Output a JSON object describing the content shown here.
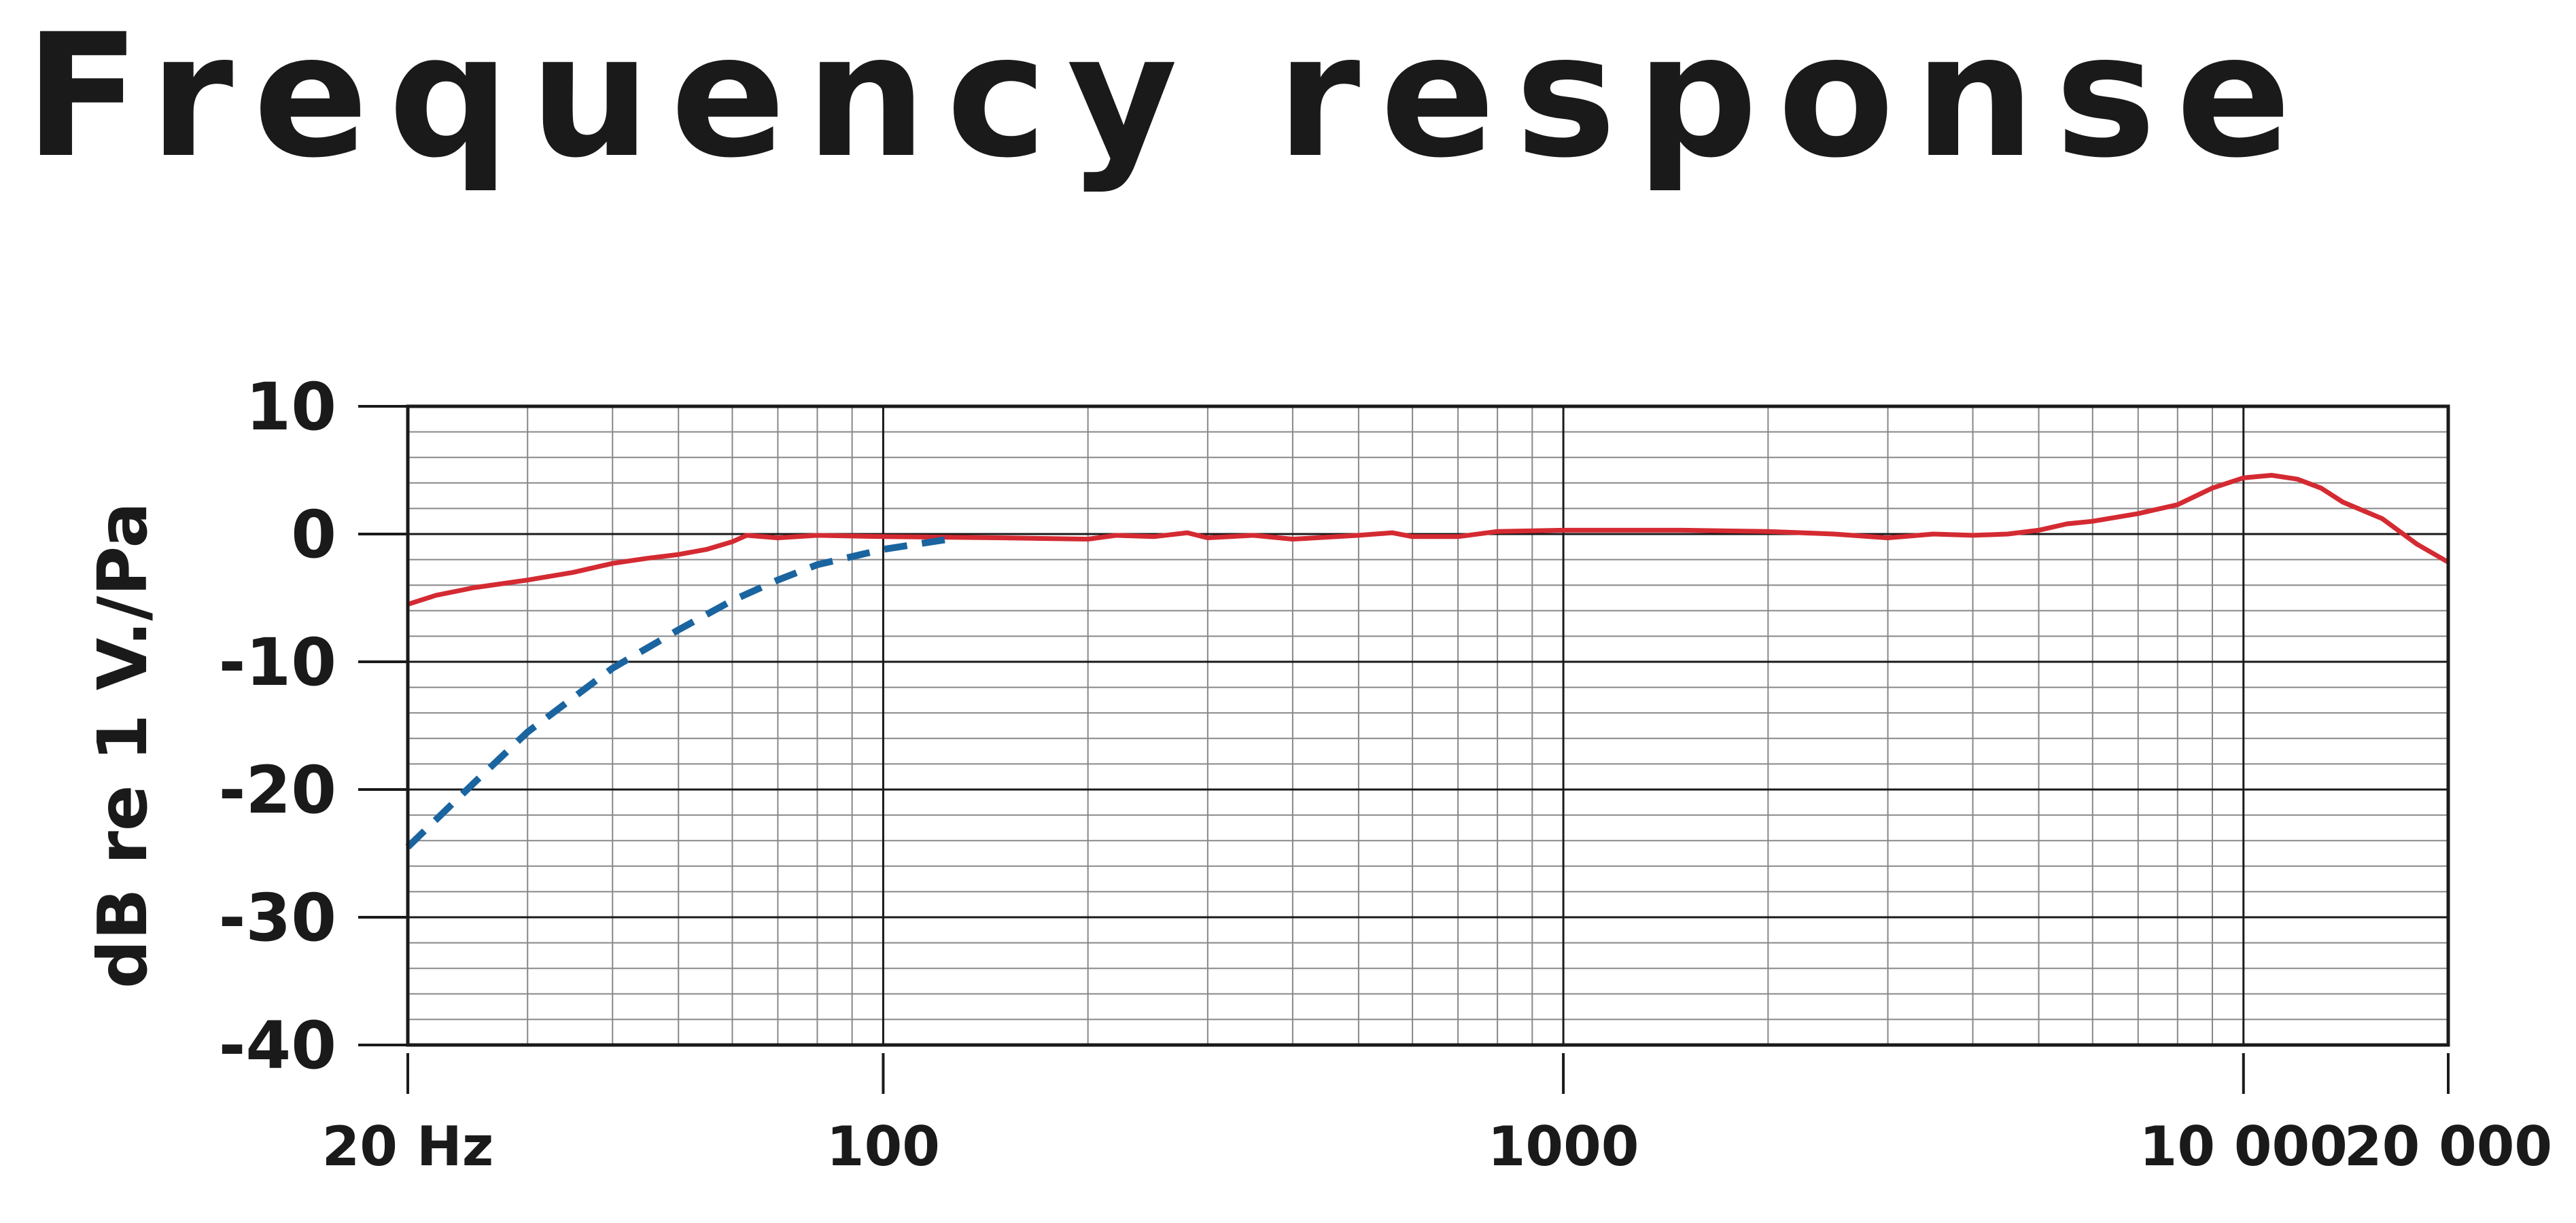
{
  "chart_data": {
    "type": "line",
    "title": "Frequency response",
    "ylabel": "dB re 1 V./Pa",
    "x_log": true,
    "grid": true,
    "minor_grid": true,
    "xlim": [
      20,
      20000
    ],
    "ylim": [
      -40,
      10
    ],
    "yticks": [
      10,
      0,
      -10,
      -20,
      -30,
      -40
    ],
    "xticks": [
      {
        "value": 20,
        "label": "20 Hz"
      },
      100,
      1000,
      {
        "value": 10000,
        "label": "10 000"
      },
      {
        "value": 20000,
        "label": "20 000"
      }
    ],
    "series": [
      {
        "name": null,
        "color": "#d42a32",
        "dashed": false,
        "x": [
          20,
          22,
          25,
          30,
          35,
          40,
          45,
          50,
          55,
          60,
          63,
          70,
          80,
          100,
          150,
          200,
          220,
          250,
          280,
          300,
          350,
          400,
          500,
          560,
          600,
          700,
          800,
          1000,
          1500,
          2000,
          2500,
          3000,
          3500,
          4000,
          4500,
          5000,
          5500,
          6000,
          7000,
          8000,
          9000,
          10000,
          11000,
          12000,
          13000,
          14000,
          16000,
          18000,
          20000
        ],
        "values": [
          -5.5,
          -4.8,
          -4.2,
          -3.6,
          -3.0,
          -2.3,
          -1.9,
          -1.6,
          -1.2,
          -0.6,
          -0.1,
          -0.3,
          -0.1,
          -0.2,
          -0.3,
          -0.4,
          -0.1,
          -0.2,
          0.1,
          -0.3,
          -0.1,
          -0.4,
          -0.1,
          0.1,
          -0.2,
          -0.2,
          0.2,
          0.3,
          0.3,
          0.2,
          0,
          -0.3,
          0,
          -0.1,
          0,
          0.3,
          0.8,
          1.0,
          1.6,
          2.3,
          3.6,
          4.4,
          4.6,
          4.3,
          3.6,
          2.5,
          1.2,
          -0.8,
          -2.2
        ]
      },
      {
        "name": null,
        "color": "#1a64a0",
        "dashed": true,
        "x": [
          20,
          25,
          30,
          40,
          50,
          60,
          70,
          80,
          100,
          125
        ],
        "values": [
          -24.5,
          -19.5,
          -15.5,
          -10.5,
          -7.5,
          -5.2,
          -3.6,
          -2.4,
          -1.2,
          -0.4
        ]
      }
    ]
  }
}
